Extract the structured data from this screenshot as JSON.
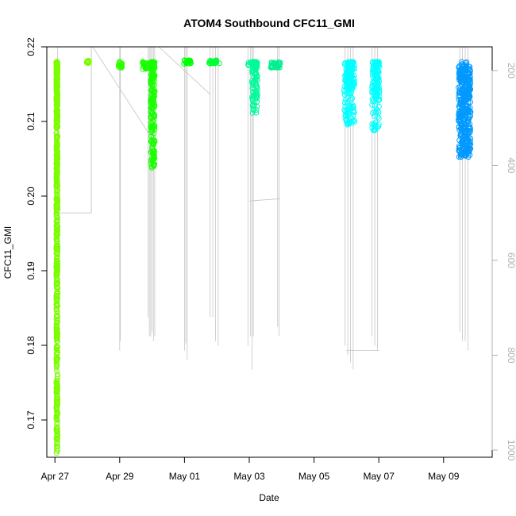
{
  "chart_data": {
    "type": "scatter",
    "title": "ATOM4 Southbound CFC11_GMI",
    "xlabel": "Date",
    "ylabel": "CFC11_GMI",
    "x_axis": {
      "type": "date",
      "range": [
        "2018-04-26T18:00",
        "2018-05-10T12:00"
      ],
      "ticks": [
        "2018-04-27",
        "2018-04-29",
        "2018-05-01",
        "2018-05-03",
        "2018-05-05",
        "2018-05-07",
        "2018-05-09"
      ],
      "tick_labels": [
        "Apr 27",
        "Apr 29",
        "May 01",
        "May 03",
        "May 05",
        "May 07",
        "May 09"
      ]
    },
    "y_axis": {
      "range": [
        0.165,
        0.22
      ],
      "ticks": [
        0.17,
        0.18,
        0.19,
        0.2,
        0.21,
        0.22
      ],
      "tick_labels": [
        "0.17",
        "0.18",
        "0.19",
        "0.20",
        "0.21",
        "0.22"
      ]
    },
    "y2_axis": {
      "quantity": "pressure",
      "direction": "inverted",
      "range": [
        1015,
        150
      ],
      "ticks": [
        200,
        400,
        600,
        800,
        1000
      ],
      "tick_labels": [
        "200",
        "400",
        "600",
        "800",
        "1000"
      ],
      "color": "#b0b0b0"
    },
    "grid": false,
    "legend": "none",
    "series": [
      {
        "date": "2018-04-27",
        "color": "#7cfc00",
        "segments": [
          {
            "x": [
              "2018-04-27T01:00",
              "2018-04-27T02:00"
            ],
            "y_range": [
              0.1655,
              0.218
            ],
            "fill": "profile"
          }
        ]
      },
      {
        "date": "2018-04-28",
        "color": "#7cfc00",
        "segments": [
          {
            "x": [
              "2018-04-27T23:30",
              "2018-04-28T01:30"
            ],
            "y_range": [
              0.2178,
              0.2182
            ],
            "fill": "band"
          }
        ]
      },
      {
        "date": "2018-04-29",
        "color": "#33ff00",
        "segments": [
          {
            "x": [
              "2018-04-28T23:00",
              "2018-04-29T02:00"
            ],
            "y_range": [
              0.2172,
              0.218
            ],
            "fill": "band"
          }
        ]
      },
      {
        "date": "2018-04-30",
        "color": "#1aff00",
        "segments": [
          {
            "x": [
              "2018-04-29T17:00",
              "2018-04-30T00:00"
            ],
            "y_range": [
              0.217,
              0.218
            ],
            "fill": "band"
          },
          {
            "x": [
              "2018-04-29T23:00",
              "2018-04-30T02:00"
            ],
            "y_range": [
              0.2035,
              0.218
            ],
            "fill": "profile"
          }
        ]
      },
      {
        "date": "2018-05-01",
        "color": "#00ff00",
        "segments": [
          {
            "x": [
              "2018-04-30T23:00",
              "2018-05-01T05:00"
            ],
            "y_range": [
              0.2177,
              0.2182
            ],
            "fill": "band"
          }
        ]
      },
      {
        "date": "2018-05-02",
        "color": "#00ff33",
        "segments": [
          {
            "x": [
              "2018-05-01T18:00",
              "2018-05-02T03:00"
            ],
            "y_range": [
              0.2177,
              0.2182
            ],
            "fill": "band"
          }
        ]
      },
      {
        "date": "2018-05-03",
        "color": "#00fa9a",
        "segments": [
          {
            "x": [
              "2018-05-02T23:00",
              "2018-05-03T06:00"
            ],
            "y_range": [
              0.2175,
              0.218
            ],
            "fill": "band"
          },
          {
            "x": [
              "2018-05-03T02:00",
              "2018-05-03T06:00"
            ],
            "y_range": [
              0.211,
              0.218
            ],
            "fill": "profile"
          }
        ]
      },
      {
        "date": "2018-05-04",
        "color": "#00f090",
        "segments": [
          {
            "x": [
              "2018-05-03T16:00",
              "2018-05-03T23:00"
            ],
            "y_range": [
              0.2172,
              0.218
            ],
            "fill": "band"
          }
        ]
      },
      {
        "date": "2018-05-06",
        "color": "#00ffff",
        "segments": [
          {
            "x": [
              "2018-05-05T22:00",
              "2018-05-06T06:00"
            ],
            "y_range": [
              0.2095,
              0.218
            ],
            "fill": "profile"
          },
          {
            "x": [
              "2018-05-06T00:00",
              "2018-05-06T04:00"
            ],
            "y_range": [
              0.2145,
              0.218
            ],
            "fill": "band"
          }
        ]
      },
      {
        "date": "2018-05-07",
        "color": "#00ffff",
        "segments": [
          {
            "x": [
              "2018-05-06T19:00",
              "2018-05-07T00:30"
            ],
            "y_range": [
              0.2085,
              0.218
            ],
            "fill": "profile"
          }
        ]
      },
      {
        "date": "2018-05-09",
        "color": "#0099ff",
        "segments": [
          {
            "x": [
              "2018-05-09T11:00",
              "2018-05-09T20:00"
            ],
            "y_range": [
              0.2052,
              0.218
            ],
            "fill": "band"
          }
        ]
      }
    ],
    "pressure_traces": {
      "color": "#c4c4c4",
      "spikes": [
        {
          "x": "2018-04-27T02:00",
          "p_max": 500
        },
        {
          "x": "2018-04-28T03:00",
          "p_max": 500
        },
        {
          "x": "2018-04-29T00:00",
          "p_max": 790
        },
        {
          "x": "2018-04-29T00:30",
          "p_max": 770
        },
        {
          "x": "2018-04-29T21:00",
          "p_max": 720
        },
        {
          "x": "2018-04-29T22:00",
          "p_max": 760
        },
        {
          "x": "2018-04-29T23:00",
          "p_max": 760
        },
        {
          "x": "2018-04-30T00:00",
          "p_max": 750
        },
        {
          "x": "2018-04-30T01:00",
          "p_max": 770
        },
        {
          "x": "2018-04-30T02:00",
          "p_max": 760
        },
        {
          "x": "2018-05-01T00:00",
          "p_max": 790
        },
        {
          "x": "2018-05-01T01:00",
          "p_max": 775
        },
        {
          "x": "2018-05-01T02:00",
          "p_max": 810
        },
        {
          "x": "2018-05-01T19:00",
          "p_max": 720
        },
        {
          "x": "2018-05-01T21:00",
          "p_max": 720
        },
        {
          "x": "2018-05-01T23:00",
          "p_max": 770
        },
        {
          "x": "2018-05-02T01:00",
          "p_max": 780
        },
        {
          "x": "2018-05-02T23:00",
          "p_max": 780
        },
        {
          "x": "2018-05-03T01:00",
          "p_max": 760
        },
        {
          "x": "2018-05-03T02:00",
          "p_max": 830
        },
        {
          "x": "2018-05-03T03:00",
          "p_max": 760
        },
        {
          "x": "2018-05-03T21:00",
          "p_max": 740
        },
        {
          "x": "2018-05-03T22:00",
          "p_max": 760
        },
        {
          "x": "2018-05-05T23:00",
          "p_max": 780
        },
        {
          "x": "2018-05-06T01:00",
          "p_max": 800
        },
        {
          "x": "2018-05-06T03:00",
          "p_max": 815
        },
        {
          "x": "2018-05-06T05:00",
          "p_max": 830
        },
        {
          "x": "2018-05-06T19:00",
          "p_max": 760
        },
        {
          "x": "2018-05-06T21:00",
          "p_max": 780
        },
        {
          "x": "2018-05-06T23:00",
          "p_max": 790
        },
        {
          "x": "2018-05-09T12:00",
          "p_max": 750
        },
        {
          "x": "2018-05-09T14:00",
          "p_max": 770
        },
        {
          "x": "2018-05-09T16:00",
          "p_max": 770
        },
        {
          "x": "2018-05-09T18:00",
          "p_max": 790
        }
      ],
      "connectors": [
        [
          [
            "2018-04-27T01:00",
            500
          ],
          [
            "2018-04-28T03:00",
            500
          ],
          [
            "2018-04-28T03:00",
            150
          ]
        ],
        [
          [
            "2018-04-28T04:00",
            150
          ],
          [
            "2018-04-29T21:00",
            330
          ]
        ],
        [
          [
            "2018-04-30T05:00",
            150
          ],
          [
            "2018-05-01T19:00",
            250
          ]
        ],
        [
          [
            "2018-05-03T00:00",
            475
          ],
          [
            "2018-05-03T23:00",
            470
          ]
        ],
        [
          [
            "2018-05-06T00:00",
            790
          ],
          [
            "2018-05-07T00:00",
            790
          ]
        ]
      ]
    }
  }
}
